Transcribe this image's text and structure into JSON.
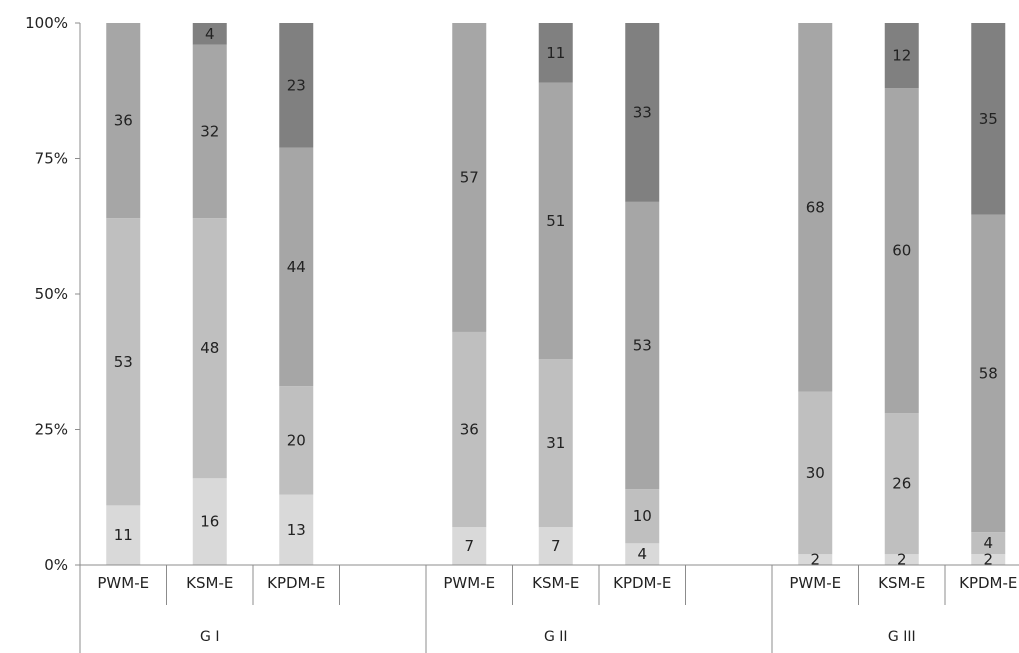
{
  "chart_data": {
    "type": "bar",
    "stacked": "percent",
    "title": "",
    "xlabel": "",
    "ylabel": "",
    "ylim": [
      0,
      100
    ],
    "y_ticks": [
      "0%",
      "25%",
      "50%",
      "75%",
      "100%"
    ],
    "groups": [
      {
        "name": "G I",
        "categories": [
          "PWM-E",
          "KSM-E",
          "KPDM-E"
        ]
      },
      {
        "name": "G II",
        "categories": [
          "PWM-E",
          "KSM-E",
          "KPDM-E"
        ]
      },
      {
        "name": "G III",
        "categories": [
          "PWM-E",
          "KSM-E",
          "KPDM-E"
        ]
      }
    ],
    "series": [
      {
        "color": "#d9d9d9",
        "values": [
          11,
          16,
          13,
          7,
          7,
          4,
          2,
          2,
          2
        ]
      },
      {
        "color": "#bfbfbf",
        "values": [
          53,
          48,
          20,
          36,
          31,
          10,
          30,
          26,
          4
        ]
      },
      {
        "color": "#a6a6a6",
        "values": [
          36,
          32,
          44,
          57,
          51,
          53,
          68,
          60,
          58
        ]
      },
      {
        "color": "#808080",
        "values": [
          0,
          4,
          23,
          0,
          11,
          33,
          0,
          12,
          35
        ]
      }
    ],
    "grid": false,
    "legend": "none"
  }
}
